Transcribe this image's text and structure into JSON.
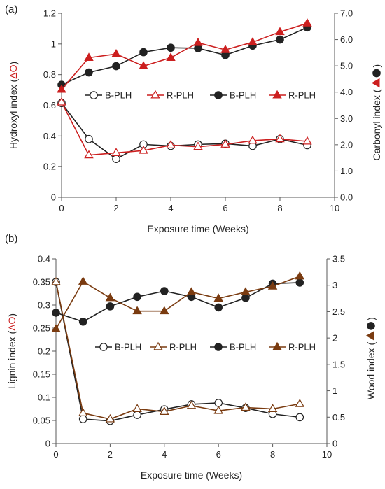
{
  "colors": {
    "black": "#222222",
    "red": "#cc1f1f",
    "brown": "#7a3b10"
  },
  "chart_data": [
    {
      "panel_label": "(a)",
      "type": "line",
      "xlabel": "Exposure time (Weeks)",
      "ylabel": {
        "text": "Hydroxyl index (",
        "delta": "ΔO",
        "close": ")"
      },
      "y2label": {
        "text": "Carbonyl index (",
        "close": ")"
      },
      "xlim": [
        0,
        10
      ],
      "ylim": [
        0,
        1.2
      ],
      "y2lim": [
        0,
        7
      ],
      "xticks": [
        "0",
        "2",
        "4",
        "6",
        "8",
        "10"
      ],
      "yticks": [
        "0",
        "0.2",
        "0.4",
        "0.6",
        "0.8",
        "1",
        "1.2"
      ],
      "y2ticks": [
        "0.0",
        "1.0",
        "2.0",
        "3.0",
        "4.0",
        "5.0",
        "6.0",
        "7.0"
      ],
      "legend": [
        "B-PLH",
        "R-PLH",
        "B-PLH",
        "R-PLH"
      ],
      "series": [
        {
          "name": "B-PLH",
          "axis": "left",
          "marker": "circle-open",
          "color": "black",
          "x": [
            0,
            1,
            2,
            3,
            4,
            5,
            6,
            7,
            8,
            9
          ],
          "y": [
            0.615,
            0.38,
            0.25,
            0.345,
            0.335,
            0.345,
            0.35,
            0.335,
            0.38,
            0.34
          ]
        },
        {
          "name": "R-PLH",
          "axis": "left",
          "marker": "triangle-open",
          "color": "red",
          "x": [
            0,
            1,
            2,
            3,
            4,
            5,
            6,
            7,
            8,
            9
          ],
          "y": [
            0.62,
            0.275,
            0.29,
            0.305,
            0.34,
            0.33,
            0.345,
            0.37,
            0.38,
            0.365
          ]
        },
        {
          "name": "B-PLH",
          "axis": "right",
          "marker": "circle-filled",
          "color": "black",
          "x": [
            0,
            1,
            2,
            3,
            4,
            5,
            6,
            7,
            8,
            9
          ],
          "y": [
            4.28,
            4.75,
            4.99,
            5.52,
            5.69,
            5.67,
            5.41,
            5.77,
            6.0,
            6.46
          ]
        },
        {
          "name": "R-PLH",
          "axis": "right",
          "marker": "triangle-filled",
          "color": "red",
          "x": [
            0,
            1,
            2,
            3,
            4,
            5,
            6,
            7,
            8,
            9
          ],
          "y": [
            4.1,
            5.31,
            5.45,
            4.99,
            5.31,
            5.88,
            5.61,
            5.9,
            6.29,
            6.62
          ]
        }
      ]
    },
    {
      "panel_label": "(b)",
      "type": "line",
      "xlabel": "Exposure time (Weeks)",
      "ylabel": {
        "text": "Lignin index (",
        "delta": "ΔO",
        "close": ")"
      },
      "y2label": {
        "text": "Wood index (",
        "close": ")"
      },
      "xlim": [
        0,
        10
      ],
      "ylim": [
        0,
        0.4
      ],
      "y2lim": [
        0,
        3.5
      ],
      "xticks": [
        "0",
        "2",
        "4",
        "6",
        "8",
        "10"
      ],
      "yticks": [
        "0",
        "0.05",
        "0.1",
        "0.15",
        "0.2",
        "0.25",
        "0.3",
        "0.35",
        "0.4"
      ],
      "y2ticks": [
        "0",
        "0.5",
        "1",
        "1.5",
        "2",
        "2.5",
        "3",
        "3.5"
      ],
      "legend": [
        "B-PLH",
        "R-PLH",
        "B-PLH",
        "R-PLH"
      ],
      "series": [
        {
          "name": "B-PLH",
          "axis": "left",
          "marker": "circle-open",
          "color": "black",
          "x": [
            0,
            1,
            2,
            3,
            4,
            5,
            6,
            7,
            8,
            9
          ],
          "y": [
            0.35,
            0.053,
            0.049,
            0.062,
            0.074,
            0.085,
            0.088,
            0.077,
            0.064,
            0.057
          ]
        },
        {
          "name": "R-PLH",
          "axis": "left",
          "marker": "triangle-open",
          "color": "brown",
          "x": [
            0,
            1,
            2,
            3,
            4,
            5,
            6,
            7,
            8,
            9
          ],
          "y": [
            0.35,
            0.066,
            0.053,
            0.075,
            0.069,
            0.082,
            0.071,
            0.078,
            0.075,
            0.086
          ]
        },
        {
          "name": "B-PLH",
          "axis": "right",
          "marker": "circle-filled",
          "color": "black",
          "x": [
            0,
            1,
            2,
            3,
            4,
            5,
            6,
            7,
            8,
            9
          ],
          "y": [
            2.48,
            2.31,
            2.6,
            2.78,
            2.89,
            2.78,
            2.58,
            2.76,
            3.03,
            3.05
          ]
        },
        {
          "name": "R-PLH",
          "axis": "right",
          "marker": "triangle-filled",
          "color": "brown",
          "x": [
            0,
            1,
            2,
            3,
            4,
            5,
            6,
            7,
            8,
            9
          ],
          "y": [
            2.17,
            3.07,
            2.76,
            2.51,
            2.51,
            2.87,
            2.75,
            2.87,
            2.98,
            3.17
          ]
        }
      ]
    }
  ]
}
